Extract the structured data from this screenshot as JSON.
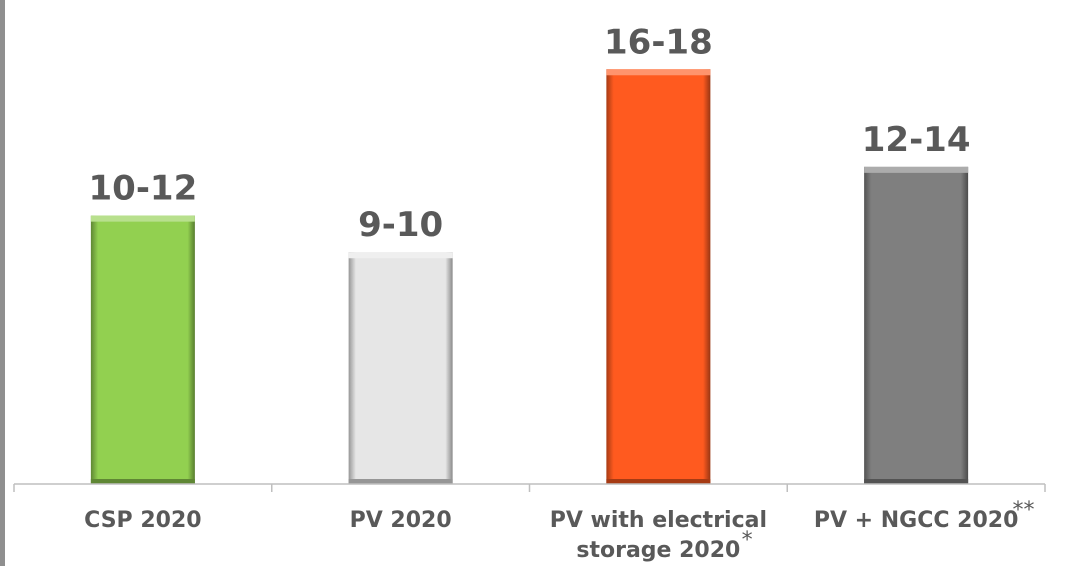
{
  "chart_data": {
    "type": "bar",
    "categories": [
      "CSP 2020",
      "PV 2020",
      "PV with electrical storage 2020",
      "PV + NGCC 2020"
    ],
    "category_lines": [
      [
        "CSP 2020"
      ],
      [
        "PV 2020"
      ],
      [
        "PV with electrical",
        "storage 2020"
      ],
      [
        "PV + NGCC 2020"
      ]
    ],
    "footnote_marks": [
      "",
      "",
      "*",
      "**"
    ],
    "values": [
      11,
      9.5,
      17,
      13
    ],
    "data_labels": [
      "10-12",
      "9-10",
      "16-18",
      "12-14"
    ],
    "bar_colors": [
      "#92d050",
      "#e6e6e6",
      "#ff5a1f",
      "#7f7f7f"
    ],
    "ylim": [
      0,
      18.2
    ],
    "grid": false,
    "legend": "none",
    "title": "",
    "xlabel": "",
    "ylabel": ""
  },
  "colors": {
    "label_text": "#595959",
    "axis_line": "#bfbfbf",
    "left_edge": "#8f8f8f"
  }
}
